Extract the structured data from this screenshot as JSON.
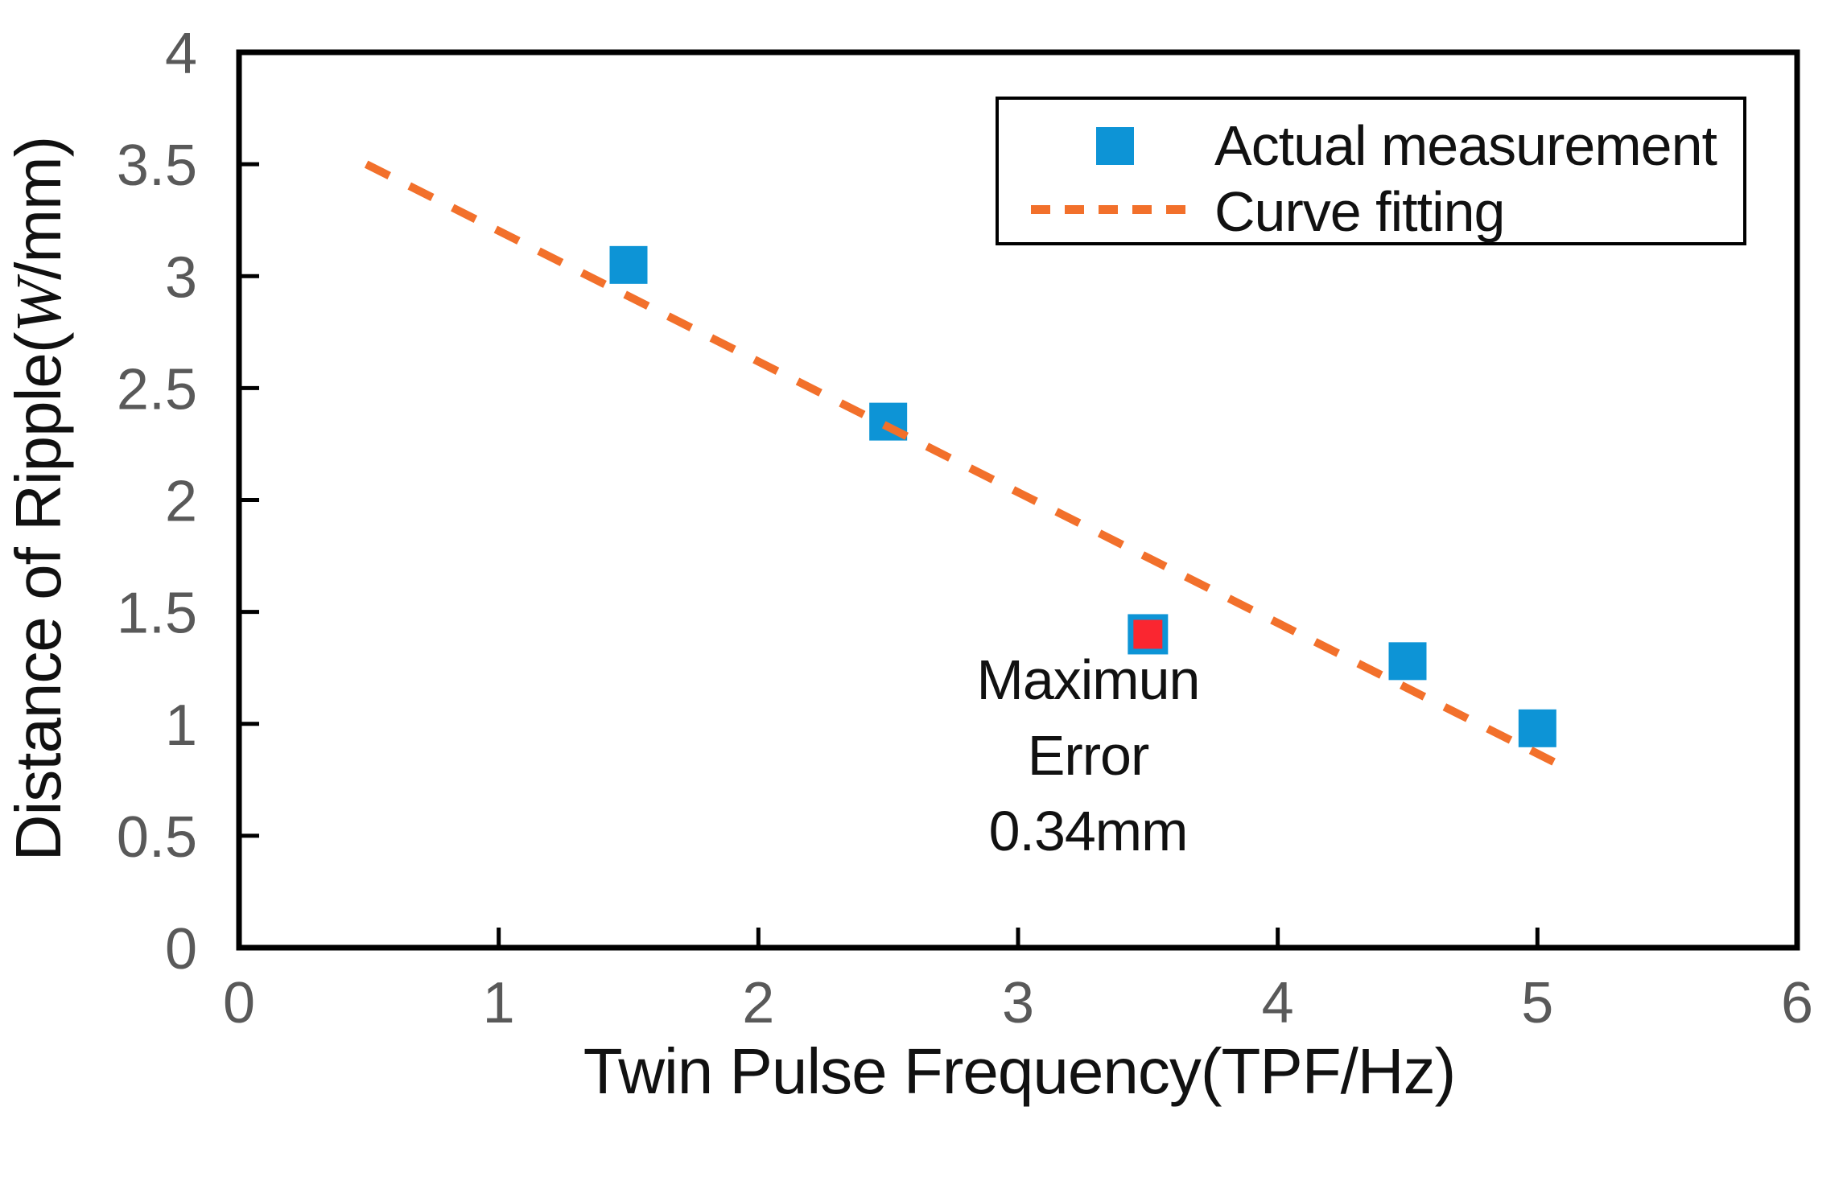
{
  "figure": {
    "background": "#ffffff"
  },
  "colors": {
    "axis": "#000000",
    "tick_label": "#595959",
    "title_text": "#111111",
    "marker_blue": "#0D94D6",
    "fit_orange": "#F2702B",
    "highlight_red": "#FA2630",
    "legend_border": "#000000"
  },
  "chart_data": {
    "type": "scatter",
    "title": "",
    "xlabel": "Twin Pulse Frequency(TPF/Hz)",
    "ylabel": "Distance of Ripple(W/mm)",
    "ylabel_parts": {
      "prefix": "Distance of Ripple(",
      "italic_symbol": "W",
      "suffix": "/mm)"
    },
    "xlim": [
      0,
      6
    ],
    "ylim": [
      0,
      4
    ],
    "x_ticks": [
      0,
      1,
      2,
      3,
      4,
      5,
      6
    ],
    "y_ticks": [
      0,
      0.5,
      1,
      1.5,
      2,
      2.5,
      3,
      3.5,
      4
    ],
    "grid": false,
    "legend_position": "top-right",
    "series": [
      {
        "name": "Actual measurement",
        "type": "scatter",
        "marker": "square",
        "color": "#0D94D6",
        "points": [
          {
            "x": 1.5,
            "y": 3.05,
            "highlight": false
          },
          {
            "x": 2.5,
            "y": 2.35,
            "highlight": false
          },
          {
            "x": 3.5,
            "y": 1.4,
            "highlight": true
          },
          {
            "x": 4.5,
            "y": 1.28,
            "highlight": false
          },
          {
            "x": 5.0,
            "y": 0.98,
            "highlight": false
          }
        ],
        "highlight_fill": "#FA2630",
        "highlight_border": "#0D94D6"
      },
      {
        "name": "Curve fitting",
        "type": "line",
        "style": "dashed",
        "color": "#F2702B",
        "x1": 0.49,
        "y1": 3.5,
        "x2": 5.08,
        "y2": 0.82
      }
    ],
    "annotation": {
      "lines": [
        "Maximun",
        "Error",
        "0.34mm"
      ],
      "near_point": {
        "x": 3.5,
        "y": 1.4
      }
    }
  }
}
